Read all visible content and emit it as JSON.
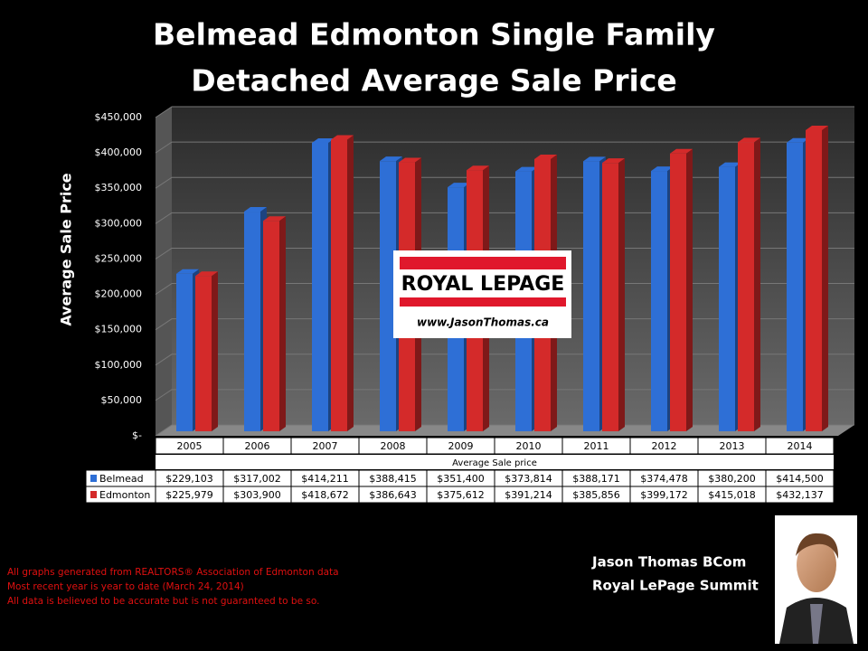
{
  "chart_data": {
    "type": "bar",
    "title": "Belmead Edmonton Single Family",
    "subtitle": "Detached Average Sale Price",
    "y_label": "Average Sale Price",
    "x_label": "Average Sale price",
    "categories": [
      "2005",
      "2006",
      "2007",
      "2008",
      "2009",
      "2010",
      "2011",
      "2012",
      "2013",
      "2014"
    ],
    "series": [
      {
        "name": "Belmead",
        "color": "#2e6fd6",
        "values": [
          229103,
          317002,
          414211,
          388415,
          351400,
          373814,
          388171,
          374478,
          380200,
          414500
        ],
        "value_labels": [
          "$229,103",
          "$317,002",
          "$414,211",
          "$388,415",
          "$351,400",
          "$373,814",
          "$388,171",
          "$374,478",
          "$380,200",
          "$414,500"
        ]
      },
      {
        "name": "Edmonton",
        "color": "#d42a2a",
        "values": [
          225979,
          303900,
          418672,
          386643,
          375612,
          391214,
          385856,
          399172,
          415018,
          432137
        ],
        "value_labels": [
          "$225,979",
          "$303,900",
          "$418,672",
          "$386,643",
          "$375,612",
          "$391,214",
          "$385,856",
          "$399,172",
          "$415,018",
          "$432,137"
        ]
      }
    ],
    "ylim": [
      0,
      450000
    ],
    "yticks": [
      {
        "value": 0,
        "label": "$-"
      },
      {
        "value": 50000,
        "label": "$50,000"
      },
      {
        "value": 100000,
        "label": "$100,000"
      },
      {
        "value": 150000,
        "label": "$150,000"
      },
      {
        "value": 200000,
        "label": "$200,000"
      },
      {
        "value": 250000,
        "label": "$250,000"
      },
      {
        "value": 300000,
        "label": "$300,000"
      },
      {
        "value": 350000,
        "label": "$350,000"
      },
      {
        "value": 400000,
        "label": "$400,000"
      },
      {
        "value": 450000,
        "label": "$450,000"
      }
    ],
    "grid": true
  },
  "logo": {
    "brand": "ROYAL LEPAGE",
    "url": "www.JasonThomas.ca"
  },
  "footnotes": [
    "All graphs generated from REALTORS® Association of Edmonton data",
    "Most recent year is year to date (March 24, 2014)",
    "All data is believed to be accurate but is not guaranteed to be so."
  ],
  "agent": {
    "name": "Jason Thomas BCom",
    "company": "Royal LePage Summit"
  }
}
